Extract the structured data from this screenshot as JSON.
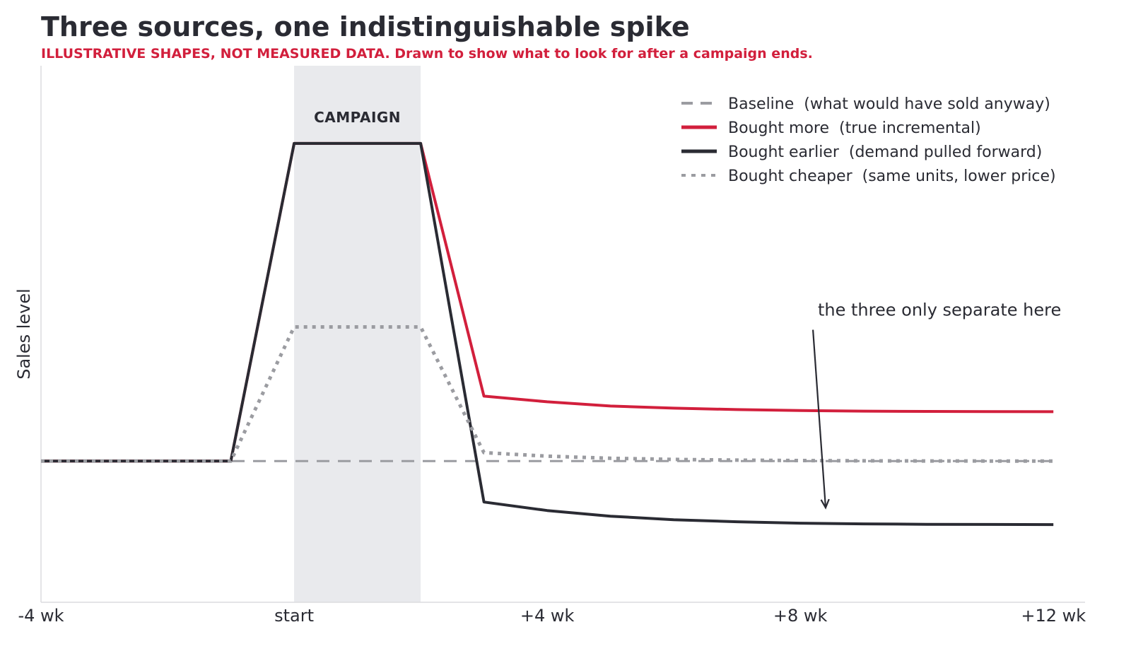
{
  "chart_data": {
    "type": "line",
    "title": "Three sources, one indistinguishable spike",
    "subtitle": "ILLUSTRATIVE SHAPES, NOT MEASURED DATA.  Drawn to show what to look for after a campaign ends.",
    "xlabel": "",
    "ylabel": "Sales level",
    "xlim": [
      -4,
      12.5
    ],
    "ylim": [
      -1,
      2.8
    ],
    "xticks": [
      {
        "value": -4,
        "label": "-4 wk"
      },
      {
        "value": 0,
        "label": "start"
      },
      {
        "value": 4,
        "label": "+4 wk"
      },
      {
        "value": 8,
        "label": "+8 wk"
      },
      {
        "value": 12,
        "label": "+12 wk"
      }
    ],
    "grid": false,
    "legend_position": "top-right",
    "campaign_band": {
      "label": "CAMPAIGN",
      "x_start": 0,
      "x_end": 2,
      "color": "#e9eaed"
    },
    "annotation": {
      "text": "the three only separate here",
      "text_x": 10.2,
      "text_y": 1.03,
      "arrow_from": [
        8.2,
        0.93
      ],
      "arrow_to": [
        8.4,
        -0.33
      ]
    },
    "series": [
      {
        "name": "Baseline  (what would have sold anyway)",
        "style": "dashed",
        "color": "#9b9ca1",
        "x": [
          -4,
          12
        ],
        "y": [
          0,
          0
        ]
      },
      {
        "name": "Bought more  (true incremental)",
        "style": "solid",
        "color": "#d21f3c",
        "x": [
          -4,
          -1,
          0,
          2,
          3,
          4,
          5,
          6,
          7,
          8,
          9,
          10,
          11,
          12
        ],
        "y": [
          0,
          0,
          2.25,
          2.25,
          0.46,
          0.42,
          0.39,
          0.375,
          0.365,
          0.358,
          0.354,
          0.352,
          0.351,
          0.35
        ]
      },
      {
        "name": "Bought earlier  (demand pulled forward)",
        "style": "solid",
        "color": "#2a2b33",
        "x": [
          -4,
          -1,
          0,
          2,
          3,
          4,
          5,
          6,
          7,
          8,
          9,
          10,
          11,
          12
        ],
        "y": [
          0,
          0,
          2.25,
          2.25,
          -0.29,
          -0.35,
          -0.39,
          -0.415,
          -0.43,
          -0.44,
          -0.445,
          -0.448,
          -0.449,
          -0.45
        ]
      },
      {
        "name": "Bought cheaper  (same units, lower price)",
        "style": "dotted",
        "color": "#9b9ca1",
        "x": [
          -4,
          -1,
          0,
          2,
          3,
          4,
          5,
          6,
          7,
          8,
          9,
          10,
          11,
          12
        ],
        "y": [
          0,
          0,
          0.95,
          0.95,
          0.06,
          0.035,
          0.02,
          0.012,
          0.007,
          0.004,
          0.002,
          0.001,
          0.0005,
          0
        ]
      }
    ]
  }
}
